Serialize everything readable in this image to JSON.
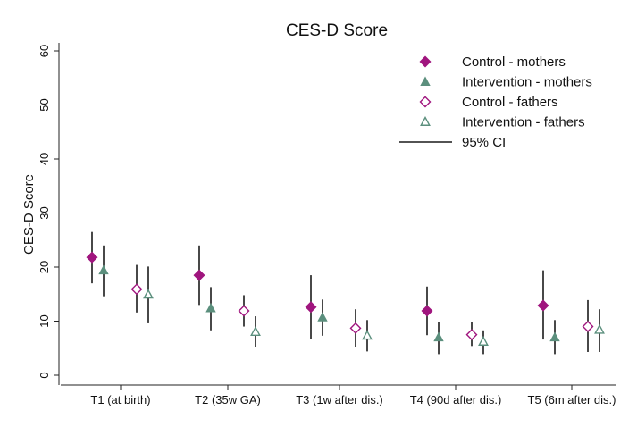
{
  "chart_data": {
    "type": "scatter",
    "title": "CES-D Score",
    "ylabel": "CES-D Score",
    "xlabel": "",
    "ylim": [
      0,
      60
    ],
    "yticks": [
      0,
      10,
      20,
      30,
      40,
      50,
      60
    ],
    "grid": false,
    "legend_position": "top-right",
    "categories": [
      "T1 (at birth)",
      "T2 (35w GA)",
      "T3 (1w after dis.)",
      "T4 (90d after dis.)",
      "T5 (6m after dis.)"
    ],
    "ci_legend_label": "95% CI",
    "series": [
      {
        "name": "Control - mothers",
        "marker": "diamond",
        "filled": true,
        "color": "#A0157E",
        "values": [
          21.8,
          18.5,
          12.6,
          11.9,
          12.9
        ],
        "ci_low": [
          17.0,
          13.0,
          6.7,
          7.4,
          6.6
        ],
        "ci_high": [
          26.5,
          24.0,
          18.5,
          16.4,
          19.4
        ]
      },
      {
        "name": "Intervention - mothers",
        "marker": "triangle",
        "filled": true,
        "color": "#5B8F7D",
        "values": [
          19.4,
          12.4,
          10.7,
          7.0,
          7.0
        ],
        "ci_low": [
          14.6,
          8.3,
          7.3,
          3.9,
          3.9
        ],
        "ci_high": [
          24.0,
          16.3,
          14.0,
          9.8,
          10.2
        ]
      },
      {
        "name": "Control - fathers",
        "marker": "diamond",
        "filled": false,
        "color": "#A0157E",
        "values": [
          15.9,
          11.9,
          8.7,
          7.5,
          9.0
        ],
        "ci_low": [
          11.6,
          9.0,
          5.2,
          5.4,
          4.3
        ],
        "ci_high": [
          20.4,
          14.8,
          12.2,
          9.9,
          13.9
        ]
      },
      {
        "name": "Intervention - fathers",
        "marker": "triangle",
        "filled": false,
        "color": "#5B8F7D",
        "values": [
          14.9,
          8.0,
          7.3,
          6.2,
          8.4
        ],
        "ci_low": [
          9.6,
          5.2,
          4.4,
          3.9,
          4.3
        ],
        "ci_high": [
          20.1,
          10.9,
          10.2,
          8.3,
          12.2
        ]
      }
    ]
  }
}
